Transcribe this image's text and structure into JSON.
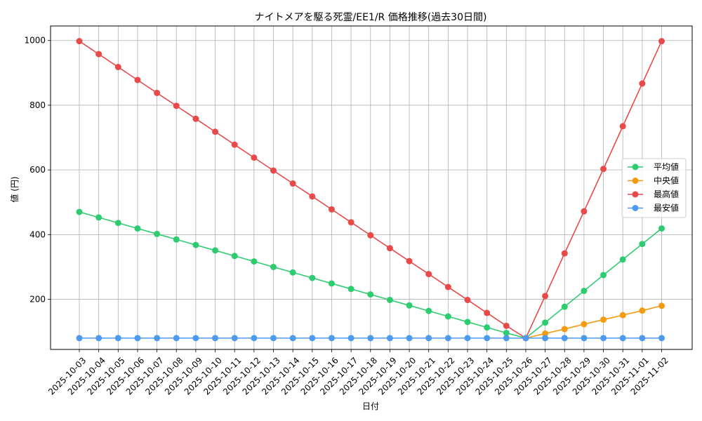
{
  "chart_data": {
    "type": "line",
    "title": "ナイトメアを駆る死霊/EE1/R 価格推移(過去30日間)",
    "xlabel": "日付",
    "ylabel": "値 (円)",
    "grid": true,
    "legend_position": "right",
    "ylim": [
      45,
      1045
    ],
    "yticks": [
      200,
      400,
      600,
      800,
      1000
    ],
    "categories": [
      "2025-10-03",
      "2025-10-04",
      "2025-10-05",
      "2025-10-06",
      "2025-10-07",
      "2025-10-08",
      "2025-10-09",
      "2025-10-10",
      "2025-10-11",
      "2025-10-12",
      "2025-10-13",
      "2025-10-14",
      "2025-10-15",
      "2025-10-16",
      "2025-10-17",
      "2025-10-18",
      "2025-10-19",
      "2025-10-20",
      "2025-10-21",
      "2025-10-22",
      "2025-10-23",
      "2025-10-24",
      "2025-10-25",
      "2025-10-26",
      "2025-10-27",
      "2025-10-28",
      "2025-10-29",
      "2025-10-30",
      "2025-10-31",
      "2025-11-01",
      "2025-11-02"
    ],
    "series": [
      {
        "name": "平均値",
        "color": "#2ecc71",
        "values": [
          470,
          453,
          436,
          419,
          402,
          385,
          368,
          351,
          334,
          317,
          300,
          283,
          266,
          249,
          232,
          215,
          198,
          181,
          164,
          147,
          130,
          113,
          96,
          80,
          128,
          177,
          226,
          275,
          323,
          371,
          419
        ]
      },
      {
        "name": "中央値",
        "color": "#f39c12",
        "values": [
          null,
          null,
          null,
          null,
          null,
          null,
          null,
          null,
          null,
          null,
          null,
          null,
          null,
          null,
          null,
          null,
          null,
          null,
          null,
          null,
          null,
          null,
          null,
          80,
          94,
          108,
          123,
          137,
          151,
          165,
          180
        ]
      },
      {
        "name": "最高値",
        "color": "#e84a4a",
        "values": [
          998,
          958,
          918,
          878,
          838,
          798,
          758,
          718,
          678,
          638,
          598,
          558,
          518,
          478,
          438,
          398,
          358,
          318,
          278,
          238,
          198,
          158,
          118,
          80,
          210,
          342,
          472,
          603,
          735,
          867,
          998
        ]
      },
      {
        "name": "最安値",
        "color": "#4e9af1",
        "values": [
          80,
          80,
          80,
          80,
          80,
          80,
          80,
          80,
          80,
          80,
          80,
          80,
          80,
          80,
          80,
          80,
          80,
          80,
          80,
          80,
          80,
          80,
          80,
          80,
          80,
          80,
          80,
          80,
          80,
          80,
          80
        ]
      }
    ]
  }
}
